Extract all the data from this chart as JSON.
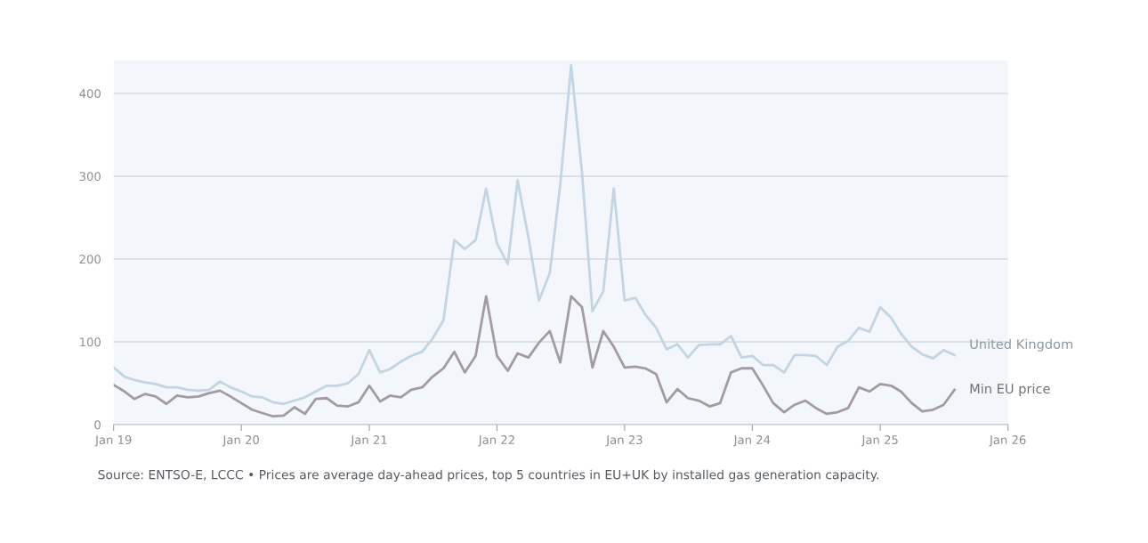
{
  "chart_data": {
    "type": "line",
    "x": [
      "2019-01",
      "2019-02",
      "2019-03",
      "2019-04",
      "2019-05",
      "2019-06",
      "2019-07",
      "2019-08",
      "2019-09",
      "2019-10",
      "2019-11",
      "2019-12",
      "2020-01",
      "2020-02",
      "2020-03",
      "2020-04",
      "2020-05",
      "2020-06",
      "2020-07",
      "2020-08",
      "2020-09",
      "2020-10",
      "2020-11",
      "2020-12",
      "2021-01",
      "2021-02",
      "2021-03",
      "2021-04",
      "2021-05",
      "2021-06",
      "2021-07",
      "2021-08",
      "2021-09",
      "2021-10",
      "2021-11",
      "2021-12",
      "2022-01",
      "2022-02",
      "2022-03",
      "2022-04",
      "2022-05",
      "2022-06",
      "2022-07",
      "2022-08",
      "2022-09",
      "2022-10",
      "2022-11",
      "2022-12",
      "2023-01",
      "2023-02",
      "2023-03",
      "2023-04",
      "2023-05",
      "2023-06",
      "2023-07",
      "2023-08",
      "2023-09",
      "2023-10",
      "2023-11",
      "2023-12",
      "2024-01",
      "2024-02",
      "2024-03",
      "2024-04",
      "2024-05",
      "2024-06",
      "2024-07",
      "2024-08",
      "2024-09",
      "2024-10",
      "2024-11",
      "2024-12",
      "2025-01",
      "2025-02",
      "2025-03",
      "2025-04",
      "2025-05",
      "2025-06",
      "2025-07",
      "2025-08"
    ],
    "series": [
      {
        "name": "United Kingdom",
        "color": "#c3d4e2",
        "values": [
          69,
          58,
          54,
          51,
          49,
          45,
          45,
          42,
          41,
          42,
          52,
          45,
          40,
          34,
          33,
          27,
          25,
          29,
          33,
          40,
          47,
          47,
          50,
          61,
          90,
          63,
          67,
          76,
          83,
          88,
          104,
          126,
          223,
          212,
          223,
          285,
          219,
          194,
          295,
          226,
          150,
          183,
          290,
          434,
          305,
          137,
          161,
          285,
          150,
          153,
          133,
          117,
          91,
          97,
          81,
          96,
          97,
          97,
          107,
          81,
          83,
          72,
          72,
          63,
          84,
          84,
          83,
          72,
          94,
          101,
          117,
          112,
          142,
          129,
          110,
          94,
          85,
          80,
          90,
          84
        ]
      },
      {
        "name": "Min EU price",
        "color": "#a39ba3",
        "values": [
          48,
          40,
          31,
          37,
          34,
          25,
          35,
          33,
          34,
          38,
          41,
          34,
          26,
          18,
          14,
          10,
          11,
          21,
          13,
          31,
          32,
          23,
          22,
          27,
          47,
          28,
          35,
          33,
          42,
          45,
          58,
          68,
          88,
          63,
          83,
          155,
          83,
          65,
          86,
          81,
          99,
          113,
          75,
          155,
          142,
          69,
          113,
          94,
          69,
          70,
          68,
          61,
          27,
          43,
          32,
          29,
          22,
          26,
          63,
          68,
          68,
          47,
          26,
          15,
          24,
          29,
          20,
          13,
          15,
          20,
          45,
          40,
          49,
          47,
          40,
          26,
          16,
          18,
          24,
          42
        ]
      }
    ],
    "xlim": [
      "2019-01",
      "2026-01"
    ],
    "xticks": [
      {
        "value": "2019-01",
        "label": "Jan 19"
      },
      {
        "value": "2020-01",
        "label": "Jan 20"
      },
      {
        "value": "2021-01",
        "label": "Jan 21"
      },
      {
        "value": "2022-01",
        "label": "Jan 22"
      },
      {
        "value": "2023-01",
        "label": "Jan 23"
      },
      {
        "value": "2024-01",
        "label": "Jan 24"
      },
      {
        "value": "2025-01",
        "label": "Jan 25"
      },
      {
        "value": "2026-01",
        "label": "Jan 26"
      }
    ],
    "ylim": [
      0,
      440
    ],
    "yticks": [
      0,
      100,
      200,
      300,
      400
    ],
    "grid": "y",
    "legend": false,
    "annotations": [
      "Source: ENTSO-E, LCCC • Prices are average day-ahead prices, top 5 countries in EU+UK by installed gas generation capacity."
    ]
  }
}
